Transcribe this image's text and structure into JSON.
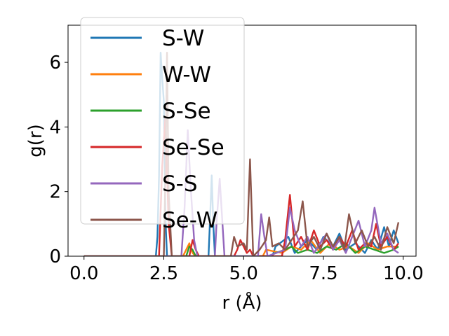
{
  "chart_data": {
    "type": "line",
    "title": "",
    "xlabel": "r (Å)",
    "ylabel": "g(r)",
    "xlim": [
      -0.5,
      10.4
    ],
    "ylim": [
      0,
      7.15
    ],
    "xticks": [
      0.0,
      2.5,
      5.0,
      7.5,
      10.0
    ],
    "xtick_labels": [
      "0.0",
      "2.5",
      "5.0",
      "7.5",
      "10.0"
    ],
    "yticks": [
      0,
      2,
      4,
      6
    ],
    "ytick_labels": [
      "0",
      "2",
      "4",
      "6"
    ],
    "grid": false,
    "legend_position": "top-left",
    "series": [
      {
        "name": "S-W",
        "color": "#1f77b4",
        "x": [
          0.0,
          2.25,
          2.3,
          2.35,
          2.4,
          2.45,
          2.5,
          2.55,
          2.6,
          2.65,
          3.9,
          3.95,
          4.0,
          4.05,
          4.1,
          5.9,
          6.0,
          6.4,
          6.6,
          7.0,
          7.3,
          7.5,
          7.8,
          8.0,
          8.2,
          8.5,
          8.8,
          9.0,
          9.2,
          9.4,
          9.55,
          9.7,
          9.85
        ],
        "y": [
          0.0,
          0.0,
          0.6,
          2.5,
          6.3,
          5.5,
          4.8,
          1.2,
          0.0,
          0.0,
          0.0,
          1.2,
          2.5,
          1.0,
          0.0,
          0.0,
          0.3,
          0.6,
          0.1,
          0.5,
          0.2,
          0.6,
          0.3,
          0.7,
          0.2,
          0.4,
          0.1,
          0.5,
          0.2,
          0.9,
          0.3,
          0.8,
          0.4
        ]
      },
      {
        "name": "W-W",
        "color": "#ff7f0e",
        "x": [
          0.0,
          3.1,
          3.2,
          3.3,
          3.4,
          3.5,
          5.6,
          5.7,
          6.2,
          6.5,
          6.8,
          7.1,
          7.4,
          7.7,
          8.0,
          8.3,
          8.6,
          8.9,
          9.2,
          9.5,
          9.85
        ],
        "y": [
          0.0,
          0.0,
          0.2,
          0.4,
          0.1,
          0.0,
          0.0,
          0.2,
          0.1,
          0.3,
          0.2,
          0.5,
          0.1,
          0.4,
          0.2,
          0.3,
          0.1,
          0.4,
          0.2,
          0.3,
          0.3
        ]
      },
      {
        "name": "S-Se",
        "color": "#2ca02c",
        "x": [
          0.0,
          3.2,
          3.3,
          3.4,
          3.5,
          5.8,
          6.0,
          6.3,
          6.5,
          6.7,
          7.0,
          7.3,
          7.6,
          7.9,
          8.2,
          8.5,
          8.8,
          9.1,
          9.4,
          9.7,
          9.85
        ],
        "y": [
          0.0,
          0.0,
          0.3,
          0.2,
          0.0,
          0.0,
          0.1,
          0.2,
          0.3,
          0.1,
          0.2,
          0.1,
          0.3,
          0.2,
          0.4,
          0.1,
          0.3,
          0.2,
          0.1,
          0.2,
          0.3
        ]
      },
      {
        "name": "Se-Se",
        "color": "#d62728",
        "x": [
          0.0,
          2.35,
          2.45,
          2.55,
          2.65,
          2.75,
          3.3,
          3.4,
          3.5,
          3.6,
          4.7,
          4.8,
          4.9,
          5.0,
          5.1,
          5.2,
          5.3,
          6.2,
          6.3,
          6.45,
          6.6,
          6.8,
          7.0,
          7.2,
          7.4,
          7.6,
          7.8,
          8.0,
          8.2,
          8.4,
          8.6,
          8.8,
          9.0,
          9.15,
          9.3,
          9.5,
          9.7,
          9.85
        ],
        "y": [
          0.0,
          0.0,
          2.8,
          4.3,
          1.0,
          0.0,
          0.0,
          0.5,
          0.2,
          0.0,
          0.0,
          0.2,
          0.5,
          0.3,
          0.1,
          0.2,
          0.0,
          0.0,
          0.5,
          1.9,
          0.3,
          0.6,
          0.2,
          0.8,
          0.3,
          0.5,
          0.2,
          0.6,
          0.3,
          0.8,
          0.2,
          0.4,
          0.3,
          1.0,
          0.3,
          0.6,
          0.2,
          0.4
        ]
      },
      {
        "name": "S-S",
        "color": "#9467bd",
        "x": [
          0.0,
          3.05,
          3.15,
          3.25,
          3.35,
          3.45,
          3.55,
          4.1,
          4.15,
          4.25,
          4.35,
          4.4,
          5.45,
          5.55,
          5.65,
          5.75,
          6.3,
          6.45,
          6.6,
          6.8,
          7.0,
          7.2,
          7.4,
          7.6,
          7.8,
          8.0,
          8.2,
          8.4,
          8.6,
          8.8,
          9.0,
          9.1,
          9.3,
          9.5,
          9.7,
          9.85
        ],
        "y": [
          0.0,
          0.0,
          1.5,
          3.9,
          2.0,
          0.5,
          0.0,
          0.0,
          1.0,
          2.4,
          0.8,
          0.0,
          0.0,
          1.3,
          0.6,
          0.0,
          0.2,
          1.5,
          0.8,
          0.3,
          0.6,
          0.1,
          0.4,
          0.7,
          0.2,
          0.5,
          0.1,
          0.6,
          1.1,
          0.3,
          0.8,
          1.5,
          0.4,
          0.7,
          0.2,
          0.1
        ]
      },
      {
        "name": "Se-W",
        "color": "#8c564b",
        "x": [
          0.0,
          2.5,
          2.55,
          2.6,
          2.65,
          2.75,
          4.6,
          4.7,
          4.8,
          5.0,
          5.1,
          5.2,
          5.3,
          5.5,
          5.7,
          5.8,
          5.9,
          6.1,
          6.3,
          6.5,
          6.7,
          6.85,
          7.0,
          7.2,
          7.4,
          7.6,
          7.8,
          8.0,
          8.15,
          8.3,
          8.5,
          8.7,
          8.9,
          9.1,
          9.3,
          9.5,
          9.7,
          9.85
        ],
        "y": [
          0.0,
          0.0,
          2.5,
          6.3,
          2.0,
          0.0,
          0.0,
          0.6,
          0.3,
          0.4,
          0.2,
          3.0,
          0.0,
          0.2,
          0.5,
          1.2,
          0.3,
          0.4,
          0.2,
          0.5,
          0.8,
          1.7,
          0.3,
          0.6,
          0.2,
          0.7,
          0.3,
          0.6,
          0.2,
          1.3,
          0.4,
          0.8,
          0.3,
          0.6,
          0.2,
          0.9,
          0.4,
          1.05
        ]
      }
    ]
  }
}
